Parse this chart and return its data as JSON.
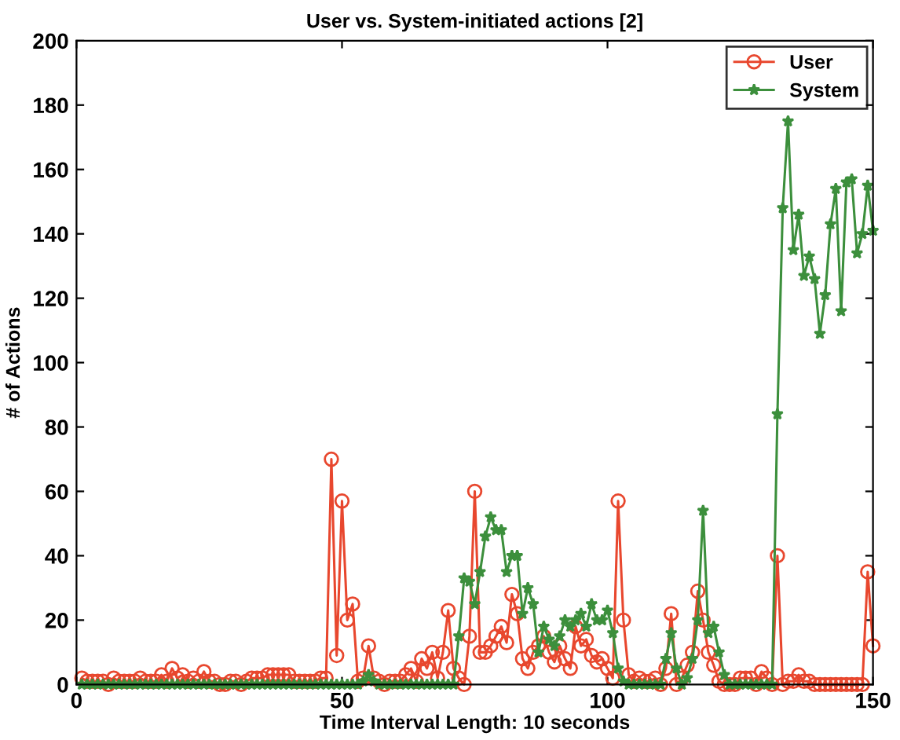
{
  "chart_data": {
    "type": "line",
    "title": "User vs. System-initiated actions [2]",
    "xlabel": "Time Interval Length: 10 seconds",
    "ylabel": "# of Actions",
    "x": [
      1,
      2,
      3,
      4,
      5,
      6,
      7,
      8,
      9,
      10,
      11,
      12,
      13,
      14,
      15,
      16,
      17,
      18,
      19,
      20,
      21,
      22,
      23,
      24,
      25,
      26,
      27,
      28,
      29,
      30,
      31,
      32,
      33,
      34,
      35,
      36,
      37,
      38,
      39,
      40,
      41,
      42,
      43,
      44,
      45,
      46,
      47,
      48,
      49,
      50,
      51,
      52,
      53,
      54,
      55,
      56,
      57,
      58,
      59,
      60,
      61,
      62,
      63,
      64,
      65,
      66,
      67,
      68,
      69,
      70,
      71,
      72,
      73,
      74,
      75,
      76,
      77,
      78,
      79,
      80,
      81,
      82,
      83,
      84,
      85,
      86,
      87,
      88,
      89,
      90,
      91,
      92,
      93,
      94,
      95,
      96,
      97,
      98,
      99,
      100,
      101,
      102,
      103,
      104,
      105,
      106,
      107,
      108,
      109,
      110,
      111,
      112,
      113,
      114,
      115,
      116,
      117,
      118,
      119,
      120,
      121,
      122,
      123,
      124,
      125,
      126,
      127,
      128,
      129,
      130,
      131,
      132,
      133,
      134,
      135,
      136,
      137,
      138,
      139,
      140,
      141,
      142,
      143,
      144,
      145,
      146,
      147,
      148,
      149,
      150
    ],
    "series": [
      {
        "name": "User",
        "color": "#e8472e",
        "marker": "circle",
        "values": [
          2,
          1,
          1,
          1,
          1,
          0,
          2,
          1,
          1,
          1,
          1,
          2,
          1,
          1,
          1,
          3,
          1,
          5,
          2,
          3,
          1,
          2,
          1,
          4,
          1,
          1,
          0,
          0,
          1,
          1,
          0,
          1,
          2,
          2,
          2,
          3,
          3,
          3,
          3,
          3,
          1,
          1,
          1,
          1,
          1,
          2,
          2,
          70,
          9,
          57,
          20,
          25,
          1,
          2,
          12,
          2,
          1,
          0,
          1,
          1,
          1,
          3,
          5,
          1,
          8,
          5,
          10,
          2,
          10,
          23,
          5,
          2,
          0,
          15,
          60,
          10,
          10,
          12,
          15,
          18,
          13,
          28,
          22,
          8,
          5,
          10,
          12,
          15,
          10,
          7,
          12,
          8,
          5,
          18,
          12,
          14,
          9,
          7,
          8,
          5,
          2,
          57,
          20,
          3,
          1,
          2,
          1,
          1,
          2,
          0,
          5,
          22,
          0,
          2,
          6,
          10,
          29,
          20,
          10,
          6,
          1,
          0,
          0,
          0,
          2,
          2,
          2,
          0,
          4,
          2,
          0,
          40,
          0,
          1,
          1,
          3,
          1,
          1,
          0,
          0,
          0,
          0,
          0,
          0,
          0,
          0,
          0,
          0,
          35,
          12
        ]
      },
      {
        "name": "System",
        "color": "#3c8f3c",
        "marker": "star",
        "values": [
          0,
          0,
          0,
          0,
          0,
          0,
          0,
          0,
          0,
          0,
          0,
          0,
          0,
          0,
          0,
          0,
          0,
          0,
          0,
          0,
          0,
          0,
          0,
          0,
          0,
          0,
          0,
          0,
          0,
          0,
          0,
          0,
          0,
          0,
          0,
          0,
          0,
          0,
          0,
          0,
          0,
          0,
          0,
          0,
          0,
          0,
          0,
          0,
          0,
          0,
          0,
          0,
          0,
          1,
          3,
          1,
          0,
          0,
          0,
          0,
          0,
          0,
          0,
          0,
          0,
          0,
          0,
          0,
          0,
          0,
          0,
          15,
          33,
          32,
          25,
          35,
          46,
          52,
          48,
          48,
          35,
          40,
          40,
          22,
          30,
          25,
          10,
          18,
          14,
          12,
          15,
          20,
          18,
          20,
          22,
          18,
          25,
          20,
          20,
          23,
          16,
          5,
          1,
          0,
          0,
          0,
          0,
          0,
          0,
          0,
          8,
          16,
          5,
          0,
          2,
          8,
          20,
          54,
          16,
          18,
          10,
          3,
          0,
          0,
          0,
          0,
          0,
          0,
          0,
          0,
          0,
          84,
          148,
          175,
          135,
          146,
          127,
          133,
          126,
          109,
          121,
          143,
          154,
          116,
          156,
          157,
          134,
          140,
          155,
          141
        ]
      }
    ],
    "xlim": [
      0,
      150
    ],
    "xticks": [
      0,
      50,
      100,
      150
    ],
    "ylim": [
      0,
      200
    ],
    "yticks": [
      0,
      20,
      40,
      60,
      80,
      100,
      120,
      140,
      160,
      180,
      200
    ],
    "legend": "top right",
    "grid": false
  }
}
